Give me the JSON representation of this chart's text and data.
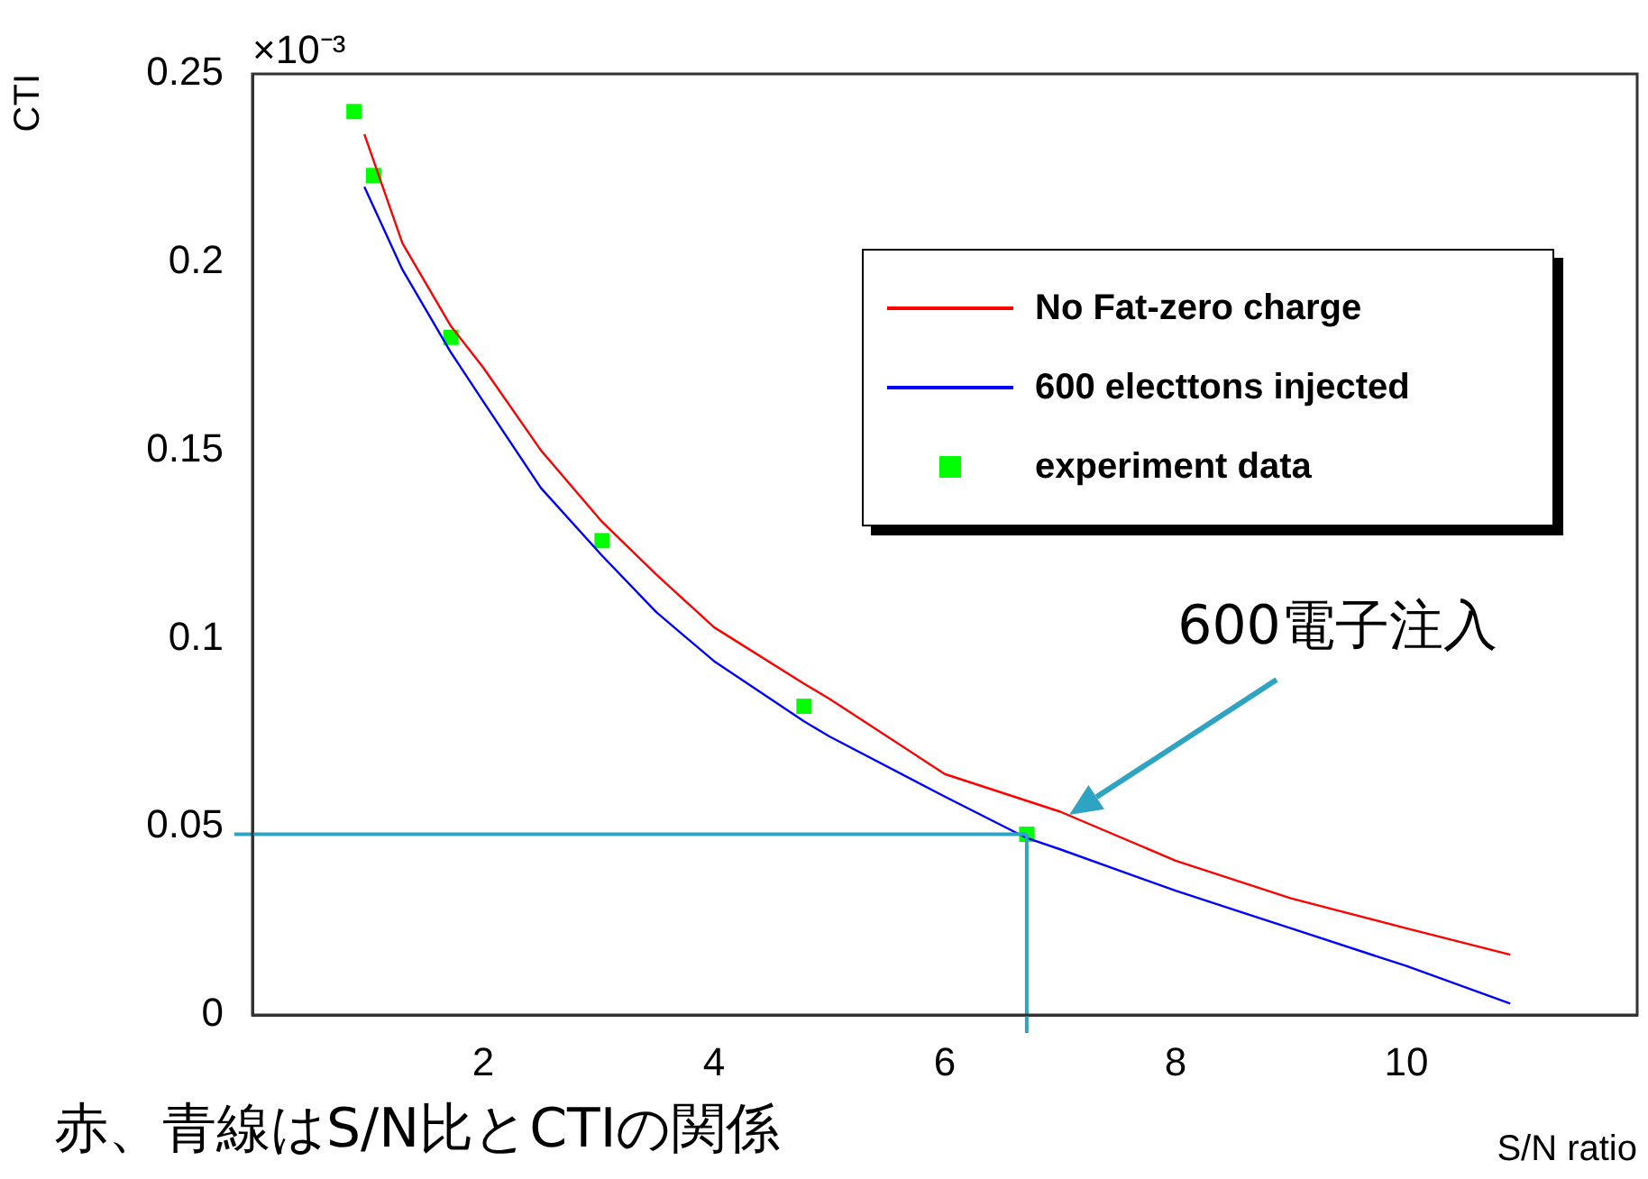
{
  "chart_data": {
    "type": "line",
    "xlabel": "S/N ratio",
    "ylabel": "CTI",
    "xlim": [
      0,
      12
    ],
    "ylim": [
      0,
      0.25
    ],
    "xticks": [
      2,
      4,
      6,
      8,
      10
    ],
    "yticks": [
      0,
      0.05,
      0.1,
      0.15,
      0.2,
      0.25
    ],
    "grid": false,
    "legend": "top right",
    "line_style": "solid",
    "series": [
      {
        "name": "No Fat-zero charge",
        "color": "#ff0000",
        "x": [
          0.97,
          1.3,
          1.72,
          2,
          2.5,
          3.03,
          3.5,
          4,
          4.78,
          5,
          6,
          7,
          8,
          9,
          10,
          10.9
        ],
        "values": [
          0.234,
          0.205,
          0.183,
          0.172,
          0.15,
          0.131,
          0.117,
          0.103,
          0.088,
          0.084,
          0.064,
          0.054,
          0.041,
          0.031,
          0.023,
          0.016
        ]
      },
      {
        "name": "600 electtons injected",
        "color": "#0000ff",
        "x": [
          0.97,
          1.3,
          1.72,
          2,
          2.5,
          3.03,
          3.5,
          4,
          4.78,
          5,
          6,
          6.71,
          7,
          8,
          9,
          10,
          10.9
        ],
        "values": [
          0.22,
          0.198,
          0.176,
          0.163,
          0.14,
          0.122,
          0.107,
          0.094,
          0.078,
          0.074,
          0.058,
          0.047,
          0.044,
          0.033,
          0.023,
          0.013,
          0.003
        ]
      },
      {
        "name": "experiment data",
        "type": "scatter",
        "marker": "square",
        "color": "#00ff00",
        "x": [
          0.88,
          1.05,
          1.72,
          3.03,
          4.78,
          6.71
        ],
        "values": [
          0.24,
          0.223,
          0.18,
          0.126,
          0.082,
          0.048
        ]
      }
    ],
    "ref_lines": [
      {
        "axis": "y",
        "value": 0.048,
        "color": "#2fa4c2"
      },
      {
        "axis": "x",
        "value": 6.71,
        "color": "#2fa4c2"
      }
    ],
    "annotations": [
      "×10⁻³",
      "600電子注入",
      "赤、青線はS/N比とCTIの関係"
    ]
  }
}
